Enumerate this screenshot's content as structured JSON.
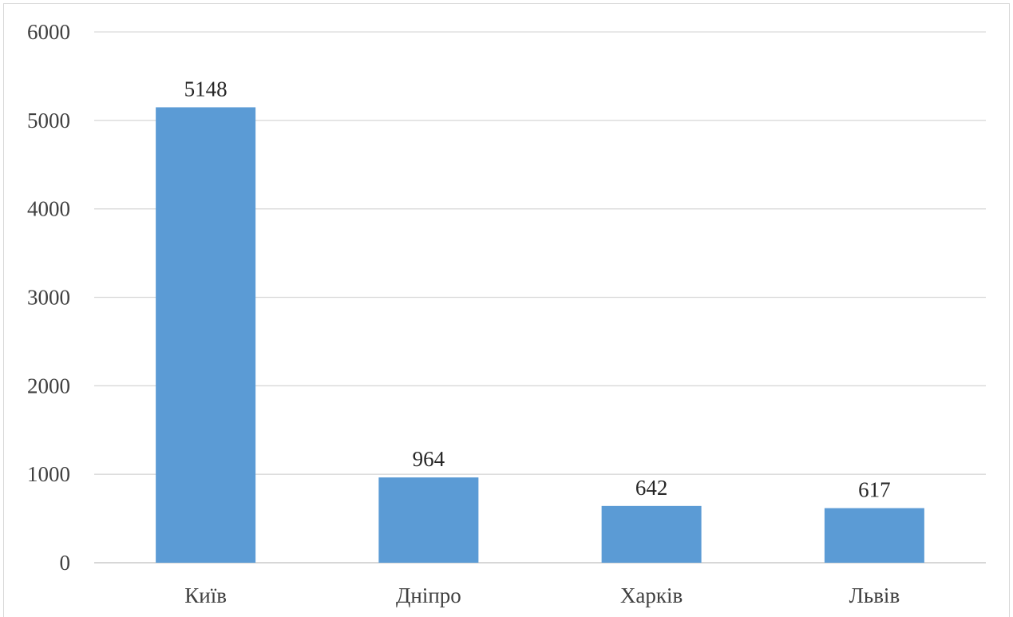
{
  "chart_data": {
    "type": "bar",
    "title": "",
    "xlabel": "",
    "ylabel": "",
    "categories": [
      "Київ",
      "Дніпро",
      "Харків",
      "Львів"
    ],
    "values": [
      5148,
      964,
      642,
      617
    ],
    "data_labels": [
      "5148",
      "964",
      "642",
      "617"
    ],
    "ylim": [
      0,
      6000
    ],
    "yticks": [
      0,
      1000,
      2000,
      3000,
      4000,
      5000,
      6000
    ],
    "ytick_labels": [
      "0",
      "1000",
      "2000",
      "3000",
      "4000",
      "5000",
      "6000"
    ],
    "grid": true,
    "legend": "none",
    "bar_color": "#5b9bd5"
  }
}
